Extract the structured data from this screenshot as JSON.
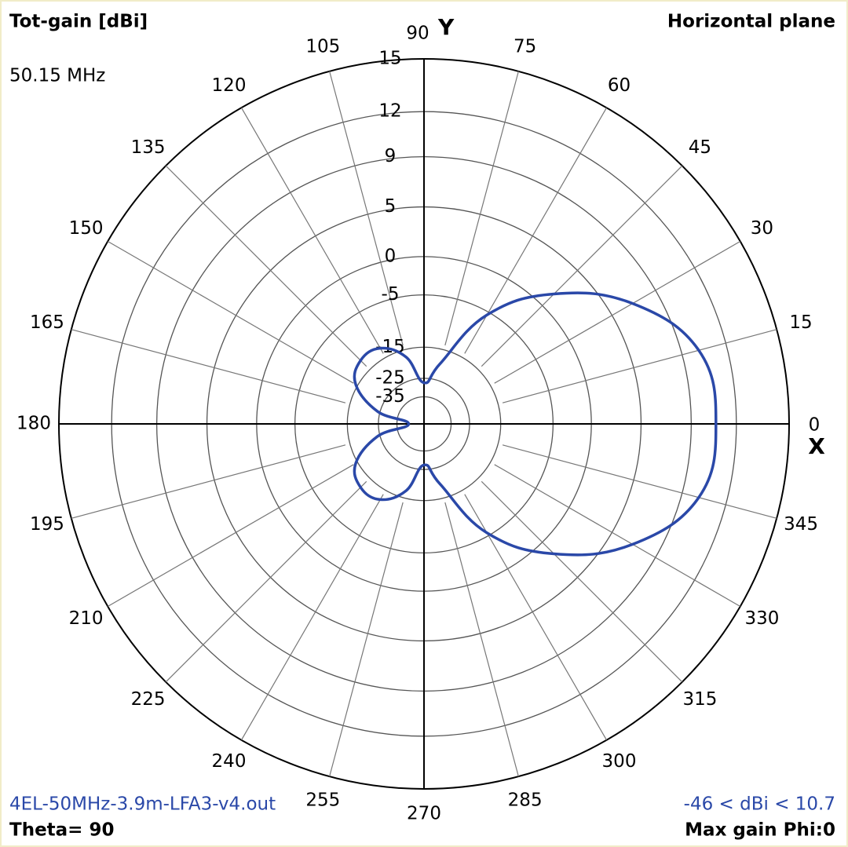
{
  "chart_data": {
    "type": "polar",
    "title": "Tot-gain [dBi]",
    "subtitle": "Horizontal plane",
    "frequency_label": "50.15 MHz",
    "file_label": "4EL-50MHz-3.9m-LFA3-v4.out",
    "range_label": "-46 < dBi < 10.7",
    "theta_label": "Theta= 90",
    "max_gain_label": "Max gain Phi:0",
    "x_axis_label": "X",
    "y_axis_label": "Y",
    "rmax": 15,
    "rticks": [
      15,
      12,
      9,
      5,
      0,
      -5,
      -15,
      -25,
      -35
    ],
    "angle_ticks": [
      0,
      15,
      30,
      45,
      60,
      75,
      90,
      105,
      120,
      135,
      150,
      165,
      180,
      195,
      210,
      225,
      240,
      255,
      270,
      285,
      300,
      315,
      330,
      345
    ],
    "series": [
      {
        "color": "#2a48a8",
        "theta": [
          0,
          15,
          30,
          45,
          60,
          75,
          90,
          105,
          120,
          135,
          150,
          165,
          180,
          195,
          210,
          225,
          240,
          255,
          270,
          285,
          300,
          315,
          330,
          345
        ],
        "values": [
          10.7,
          10.2,
          7,
          1.8,
          -5.5,
          -19,
          -27,
          -17,
          -12.5,
          -12,
          -14.5,
          -24,
          -46,
          -24,
          -14.5,
          -12,
          -12.5,
          -17,
          -27,
          -19,
          -5.5,
          1.8,
          7,
          10.2
        ]
      }
    ]
  }
}
